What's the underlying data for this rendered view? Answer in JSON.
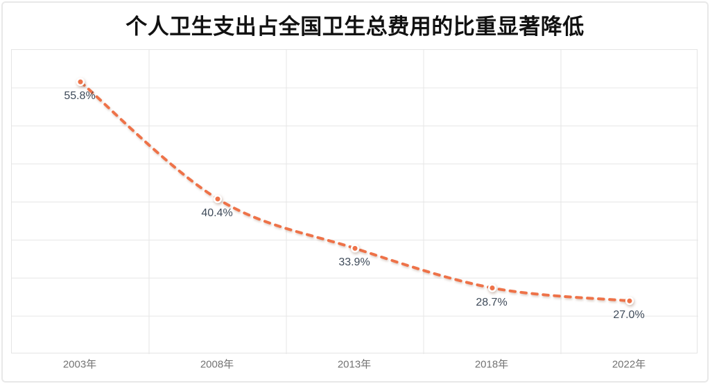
{
  "chart_data": {
    "type": "line",
    "title": "个人卫生支出占全国卫生总费用的比重显著降低",
    "categories": [
      "2003年",
      "2008年",
      "2013年",
      "2018年",
      "2022年"
    ],
    "values": [
      55.8,
      40.4,
      33.9,
      28.7,
      27.0
    ],
    "point_labels": [
      "55.8%",
      "40.4%",
      "33.9%",
      "28.7%",
      "27.0%"
    ],
    "series_name": "个人卫生支出占全国卫生总费用的比重",
    "xlabel": "",
    "ylabel": "",
    "ylim": [
      20,
      60
    ],
    "y_grid_step": 5,
    "grid": true,
    "legend_position": "none",
    "line_style": "dashed-smooth",
    "marker": "circle",
    "colors": {
      "line": "#ee7248",
      "marker_fill": "#ee7248",
      "marker_ring": "#ffffff",
      "grid": "#e6e6e6",
      "plot_border": "#e4e4e4",
      "data_label": "#3e4a59",
      "axis_label": "#737373",
      "title": "#111111",
      "frame": "#e8e8e8"
    }
  }
}
